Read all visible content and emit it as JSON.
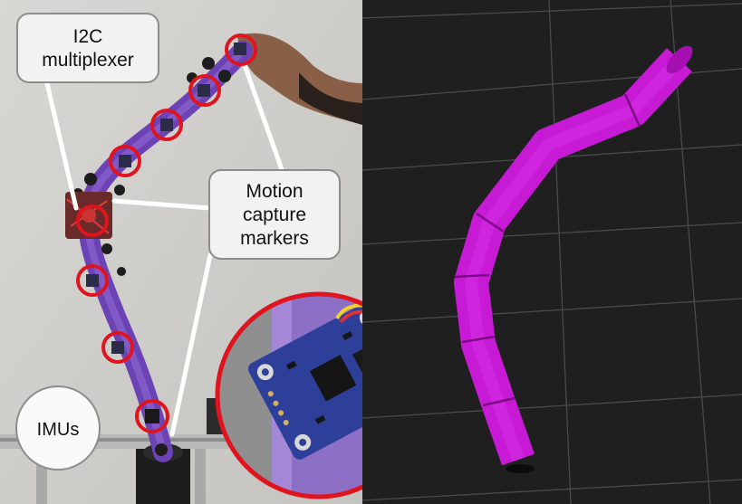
{
  "figure": {
    "photo_panel": {
      "labels": {
        "i2c_multiplexer": [
          "I2C",
          "multiplexer"
        ],
        "motion_capture": [
          "Motion",
          "capture",
          "markers"
        ],
        "imus": "IMUs"
      },
      "imu_count": 8,
      "inset": "close-up of IMU sensor board on purple tube"
    },
    "render_panel": {
      "background": "#1f1f1f",
      "grid_color": "#4a4a4a",
      "tube_color": "#cc19d9",
      "segment_count": 6
    },
    "colors": {
      "marker_ring": "#e0141e",
      "photo_tube": "#7a4fc4",
      "sensor_board": "#2a3b8f"
    }
  }
}
